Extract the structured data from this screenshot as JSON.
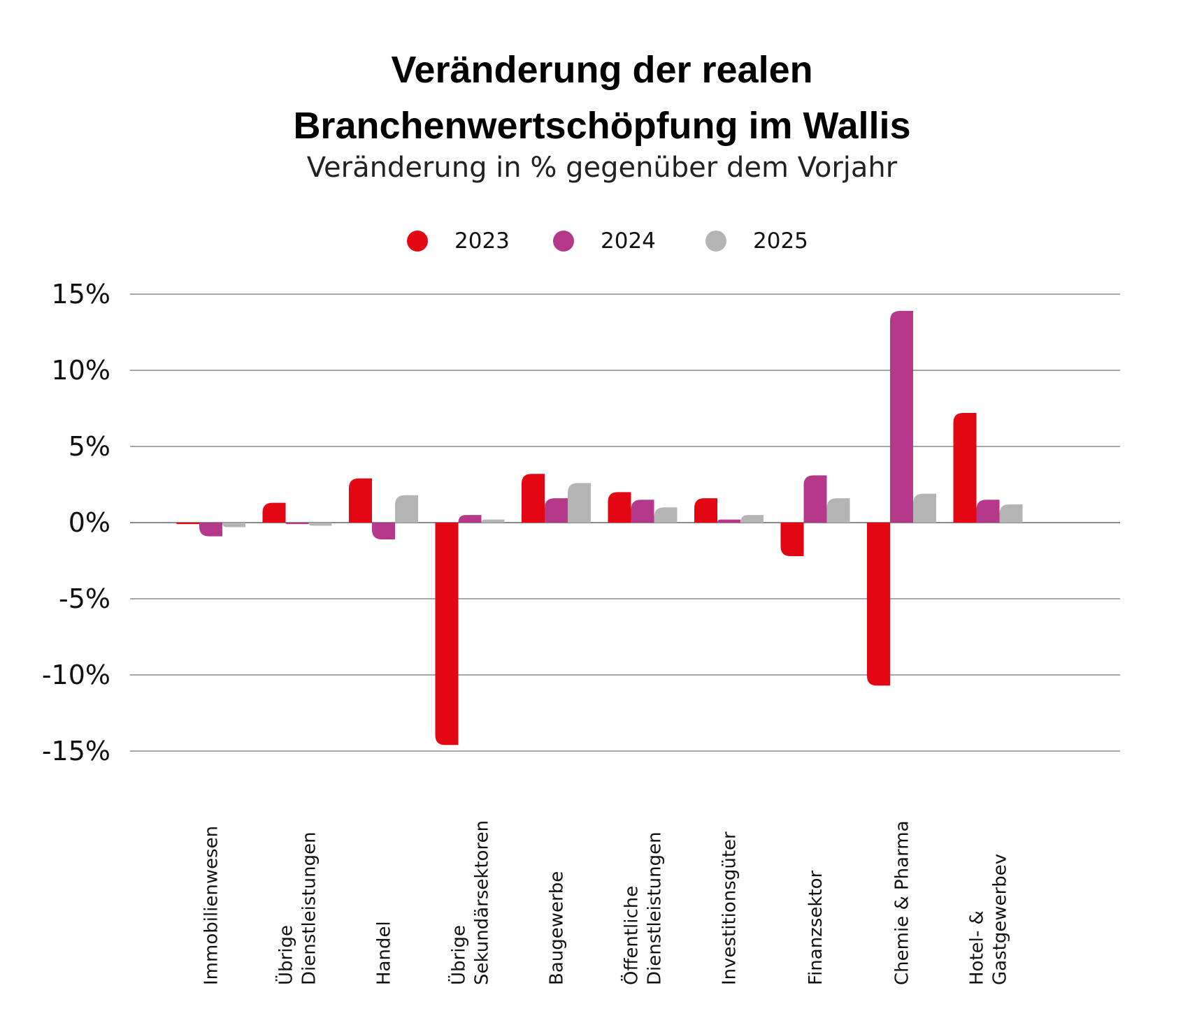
{
  "chart_data": {
    "type": "bar",
    "title_lines": [
      "Veränderung der realen",
      "Branchenwertschöpfung im Wallis"
    ],
    "subtitle": "Veränderung in % gegenüber dem Vorjahr",
    "categories": [
      [
        "Immobilienwesen"
      ],
      [
        "Übrige",
        "Dienstleistungen"
      ],
      [
        "Handel"
      ],
      [
        "Übrige",
        "Sekundärsektoren"
      ],
      [
        "Baugewerbe"
      ],
      [
        "Öffentliche",
        "Dienstleistungen"
      ],
      [
        "Investitionsgüter"
      ],
      [
        "Finanzsektor"
      ],
      [
        "Chemie & Pharma"
      ],
      [
        "Hotel- &",
        "Gastgewerbev"
      ]
    ],
    "series": [
      {
        "name": "2023",
        "color": "#e30613",
        "values": [
          -0.1,
          1.3,
          2.9,
          -14.6,
          3.2,
          2.0,
          1.6,
          -2.2,
          -10.7,
          7.2
        ]
      },
      {
        "name": "2024",
        "color": "#b5388a",
        "values": [
          -0.9,
          -0.1,
          -1.1,
          0.5,
          1.6,
          1.5,
          0.2,
          3.1,
          13.9,
          1.5
        ]
      },
      {
        "name": "2025",
        "color": "#b4b4b4",
        "values": [
          -0.3,
          -0.2,
          1.8,
          0.2,
          2.6,
          1.0,
          0.5,
          1.6,
          1.9,
          1.2
        ]
      }
    ],
    "y_ticks": [
      15,
      10,
      5,
      0,
      -5,
      -10,
      -15
    ],
    "y_tick_labels": [
      "15%",
      "10%",
      "5%",
      "0%",
      "-5%",
      "-10%",
      "-15%"
    ],
    "ylim": [
      -15,
      15
    ],
    "grid": true,
    "legend_position": "top-center"
  }
}
